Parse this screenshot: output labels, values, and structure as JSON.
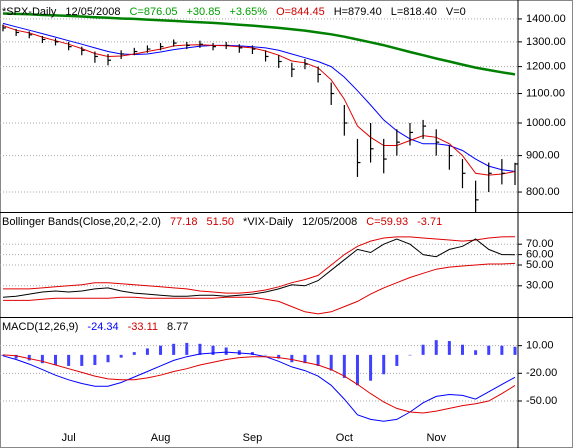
{
  "chart_data": [
    {
      "type": "ohlc",
      "log": true,
      "grid": true,
      "color": "#000000",
      "header": [
        {
          "text": "*SPX-Daily",
          "color": "#000000"
        },
        {
          "text": "12/05/2008",
          "color": "#000000"
        },
        {
          "text": "C=876.05",
          "color": "#00a000"
        },
        {
          "text": "+30.85",
          "color": "#00a000"
        },
        {
          "text": "+3.65%",
          "color": "#00a000"
        },
        {
          "text": "O=844.45",
          "color": "#d00000"
        },
        {
          "text": "H=879.40",
          "color": "#000000"
        },
        {
          "text": "L=818.40",
          "color": "#000000"
        },
        {
          "text": "V=0",
          "color": "#000000"
        }
      ],
      "ylim": [
        750,
        1474
      ],
      "yticks": [
        {
          "value": 800,
          "label": "800.00"
        },
        {
          "value": 900,
          "label": "900.00"
        },
        {
          "value": 1000,
          "label": "1000.00"
        },
        {
          "value": 1100,
          "label": "1100.00"
        },
        {
          "value": 1200,
          "label": "1200.00"
        },
        {
          "value": 1300,
          "label": "1300.00"
        },
        {
          "value": 1400,
          "label": "1400.00"
        }
      ],
      "high": [
        1375,
        1355,
        1345,
        1325,
        1315,
        1300,
        1280,
        1260,
        1250,
        1265,
        1275,
        1285,
        1295,
        1310,
        1300,
        1305,
        1295,
        1300,
        1290,
        1285,
        1265,
        1245,
        1215,
        1230,
        1200,
        1140,
        1060,
        950,
        1000,
        950,
        980,
        1000,
        1010,
        980,
        930,
        890,
        830,
        880,
        890,
        879.4
      ],
      "low": [
        1345,
        1325,
        1315,
        1295,
        1285,
        1265,
        1245,
        1215,
        1205,
        1230,
        1245,
        1255,
        1265,
        1280,
        1270,
        1275,
        1265,
        1270,
        1255,
        1250,
        1220,
        1195,
        1160,
        1190,
        1140,
        1060,
        960,
        840,
        880,
        850,
        900,
        930,
        950,
        900,
        860,
        810,
        750,
        800,
        820,
        818.4
      ],
      "close": [
        1360,
        1340,
        1330,
        1310,
        1300,
        1280,
        1265,
        1240,
        1225,
        1250,
        1260,
        1270,
        1280,
        1295,
        1285,
        1290,
        1280,
        1285,
        1275,
        1270,
        1240,
        1220,
        1190,
        1210,
        1170,
        1100,
        1000,
        880,
        920,
        890,
        940,
        970,
        990,
        940,
        900,
        850,
        780,
        850,
        850,
        876.05
      ],
      "series": [
        {
          "color": "#0000ff",
          "width": 1,
          "values": [
            1380,
            1365,
            1350,
            1335,
            1320,
            1305,
            1290,
            1275,
            1260,
            1250,
            1248,
            1250,
            1258,
            1268,
            1275,
            1282,
            1285,
            1285,
            1283,
            1280,
            1275,
            1265,
            1250,
            1235,
            1220,
            1200,
            1160,
            1110,
            1060,
            1010,
            975,
            950,
            935,
            935,
            930,
            915,
            890,
            870,
            860,
            855
          ]
        },
        {
          "color": "#e00000",
          "width": 1,
          "values": [
            1370,
            1350,
            1338,
            1320,
            1305,
            1290,
            1272,
            1252,
            1240,
            1242,
            1250,
            1260,
            1270,
            1283,
            1287,
            1288,
            1285,
            1284,
            1280,
            1275,
            1262,
            1245,
            1222,
            1215,
            1195,
            1150,
            1080,
            990,
            955,
            930,
            930,
            945,
            960,
            955,
            935,
            900,
            850,
            845,
            848,
            855
          ]
        },
        {
          "color": "#008000",
          "width": 2.5,
          "values": [
            1425,
            1423,
            1421,
            1418,
            1416,
            1414,
            1411,
            1408,
            1405,
            1402,
            1400,
            1397,
            1394,
            1391,
            1388,
            1385,
            1382,
            1378,
            1374,
            1370,
            1365,
            1360,
            1354,
            1348,
            1340,
            1332,
            1322,
            1310,
            1298,
            1286,
            1272,
            1258,
            1245,
            1232,
            1220,
            1208,
            1196,
            1187,
            1178,
            1170
          ]
        }
      ]
    },
    {
      "type": "line",
      "grid": true,
      "header": [
        {
          "text": "Bollinger Bands(Close,20,2,-2.0)",
          "color": "#000000"
        },
        {
          "text": "77.18",
          "color": "#d00000"
        },
        {
          "text": "51.50",
          "color": "#d00000"
        },
        {
          "text": "*VIX-Daily",
          "color": "#000000"
        },
        {
          "text": "12/05/2008",
          "color": "#000000"
        },
        {
          "text": "C=59.93",
          "color": "#d00000"
        },
        {
          "text": "-3.71",
          "color": "#d00000"
        }
      ],
      "ylim": [
        0,
        100
      ],
      "yticks": [
        {
          "value": 30,
          "label": "30.00"
        },
        {
          "value": 50,
          "label": "50.00"
        },
        {
          "value": 60,
          "label": "60.00"
        },
        {
          "value": 70,
          "label": "70.00"
        }
      ],
      "series": [
        {
          "color": "#e00000",
          "width": 1,
          "values": [
            27,
            27,
            27,
            28,
            29,
            30,
            31,
            33,
            33,
            32,
            31,
            30,
            29,
            28,
            27,
            25,
            24,
            23,
            23,
            24,
            26,
            29,
            33,
            36,
            40,
            50,
            60,
            68,
            73,
            76,
            77,
            77,
            76,
            75,
            74,
            73,
            74,
            76,
            77,
            77.18
          ]
        },
        {
          "color": "#e00000",
          "width": 1,
          "values": [
            16,
            16,
            16,
            17,
            18,
            18,
            18,
            18,
            18,
            19,
            19,
            18,
            18,
            18,
            18,
            18,
            18,
            19,
            19,
            19,
            17,
            15,
            10,
            5,
            3,
            5,
            10,
            15,
            22,
            28,
            33,
            38,
            42,
            46,
            48,
            49,
            50,
            51,
            51,
            51.5
          ]
        },
        {
          "color": "#000000",
          "width": 1,
          "values": [
            19,
            20,
            22,
            24,
            25,
            24,
            25,
            27,
            28,
            25,
            23,
            22,
            21,
            20,
            20,
            21,
            21,
            20,
            21,
            22,
            24,
            27,
            31,
            30,
            35,
            45,
            55,
            65,
            62,
            70,
            75,
            70,
            60,
            58,
            65,
            68,
            75,
            65,
            60,
            59.93
          ]
        }
      ]
    },
    {
      "type": "macd",
      "grid": true,
      "header": [
        {
          "text": "MACD(12,26,9)",
          "color": "#000000"
        },
        {
          "text": "-24.34",
          "color": "#0000ff"
        },
        {
          "text": "-33.11",
          "color": "#d00000"
        },
        {
          "text": "8.77",
          "color": "#000000"
        }
      ],
      "ylim": [
        -101,
        40
      ],
      "yticks": [
        {
          "value": -50,
          "label": "-50.00"
        },
        {
          "value": -20,
          "label": "-20.00"
        },
        {
          "value": 10,
          "label": "10.00"
        }
      ],
      "categories": [
        null,
        null,
        null,
        null,
        null,
        "Jul",
        null,
        null,
        null,
        null,
        null,
        null,
        "Aug",
        null,
        null,
        null,
        null,
        null,
        null,
        "Sep",
        null,
        null,
        null,
        null,
        null,
        null,
        "Oct",
        null,
        null,
        null,
        null,
        null,
        null,
        "Nov",
        null,
        null,
        null,
        null,
        null,
        null
      ],
      "histogram": {
        "color": "#4040ff",
        "values": [
          -1,
          -4,
          -6,
          -9,
          -11,
          -12,
          -12,
          -11,
          -8,
          -3,
          3,
          7,
          10,
          12,
          13,
          12,
          10,
          8,
          5,
          3,
          0,
          -4,
          -8,
          -9,
          -12,
          -17,
          -25,
          -33,
          -28,
          -21,
          -12,
          0,
          11,
          16,
          15,
          11,
          5,
          10,
          10,
          8.77
        ]
      },
      "series": [
        {
          "color": "#0000ff",
          "width": 1,
          "values": [
            -1,
            -5,
            -10,
            -16,
            -22,
            -27,
            -31,
            -34,
            -34,
            -30,
            -24,
            -18,
            -12,
            -6,
            -2,
            1,
            2,
            3,
            2,
            1,
            -2,
            -7,
            -13,
            -17,
            -23,
            -33,
            -48,
            -65,
            -70,
            -72,
            -70,
            -62,
            -52,
            -45,
            -43,
            -44,
            -48,
            -40,
            -32,
            -24.34
          ]
        },
        {
          "color": "#e00000",
          "width": 1,
          "values": [
            0,
            -1,
            -4,
            -7,
            -11,
            -15,
            -19,
            -23,
            -26,
            -27,
            -27,
            -25,
            -22,
            -18,
            -15,
            -11,
            -8,
            -5,
            -3,
            -2,
            -2,
            -3,
            -5,
            -8,
            -11,
            -16,
            -23,
            -32,
            -42,
            -51,
            -58,
            -62,
            -63,
            -61,
            -58,
            -55,
            -53,
            -50,
            -42,
            -33.11
          ]
        }
      ]
    }
  ]
}
